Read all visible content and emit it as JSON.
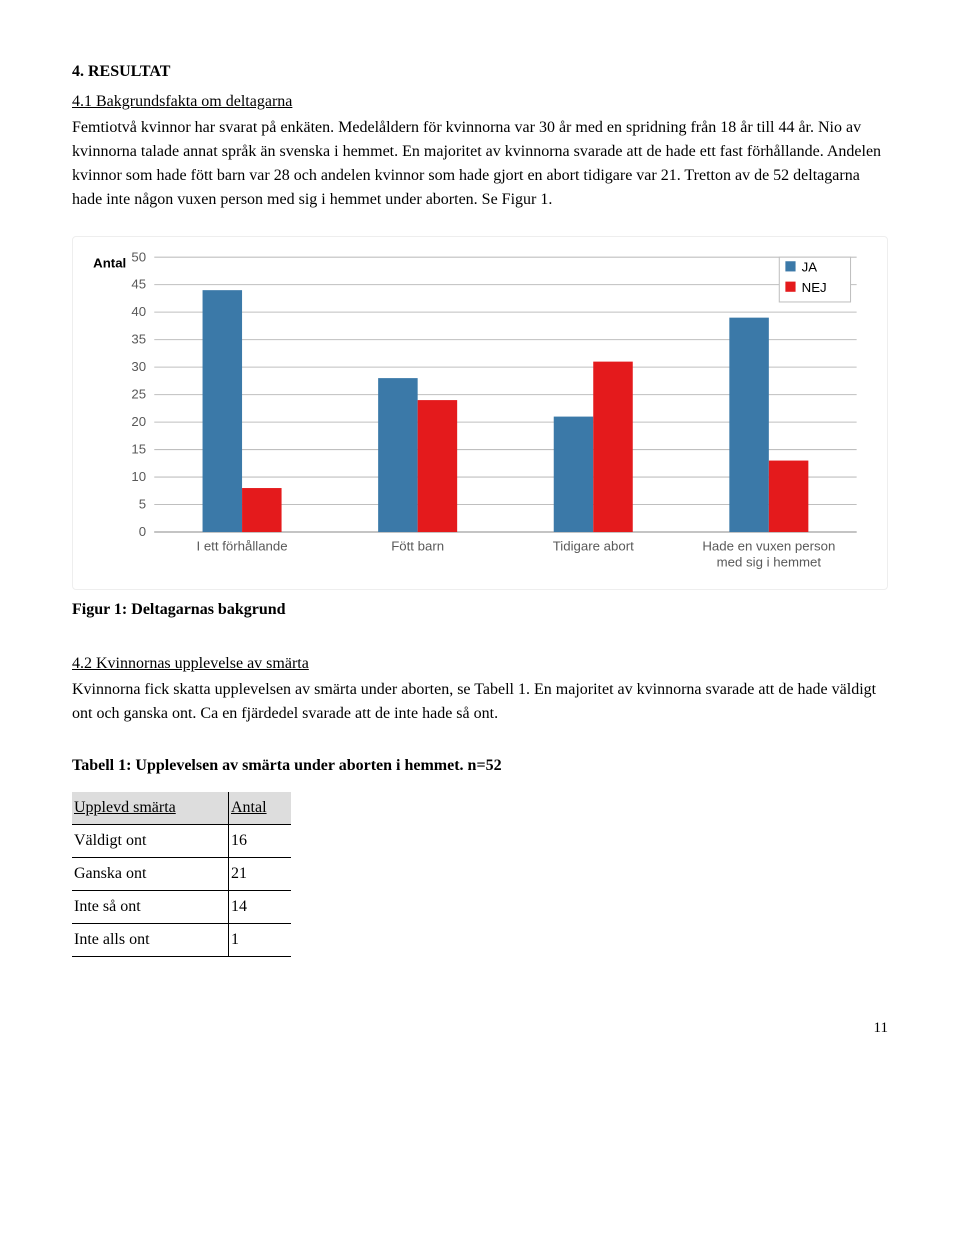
{
  "section41": {
    "heading_main": "4. RESULTAT",
    "heading_sub": "4.1 Bakgrundsfakta om deltagarna",
    "paragraph": "Femtiotvå kvinnor har svarat på enkäten. Medelåldern för kvinnorna var 30 år med en spridning från 18 år till 44 år. Nio av kvinnorna talade annat språk än svenska i hemmet. En majoritet av kvinnorna svarade att de hade ett fast förhållande. Andelen kvinnor som hade fött barn var 28 och andelen kvinnor som hade gjort en abort tidigare var 21. Tretton av de 52 deltagarna hade inte någon vuxen person med sig i hemmet under aborten. Se Figur 1."
  },
  "chart": {
    "type": "bar",
    "ylabel": "Antal",
    "categories": [
      "I ett förhållande",
      "Fött barn",
      "Tidigare abort",
      "Hade en vuxen person med sig i hemmet"
    ],
    "series": [
      {
        "name": "JA",
        "color": "#3b79a8",
        "values": [
          44,
          28,
          21,
          39
        ]
      },
      {
        "name": "NEJ",
        "color": "#e41a1c",
        "values": [
          8,
          24,
          31,
          13
        ]
      }
    ],
    "ylim": [
      0,
      50
    ],
    "ytick_step": 5,
    "background_color": "#ffffff",
    "grid_color": "#bfbfbf",
    "axis_font_family": "Arial, Helvetica, sans-serif",
    "axis_font_size": 13,
    "legend_font_size": 13,
    "bar_group_width": 0.45,
    "legend_box_border": "#bfbfbf"
  },
  "figure_caption": "Figur 1: Deltagarnas bakgrund",
  "section42": {
    "heading": "4.2 Kvinnornas upplevelse av smärta",
    "paragraph": "Kvinnorna fick skatta upplevelsen av smärta under aborten, se Tabell 1. En majoritet av kvinnorna svarade att de hade väldigt ont och ganska ont. Ca en fjärdedel svarade att de inte hade så ont."
  },
  "table1": {
    "title": "Tabell 1: Upplevelsen av smärta under aborten i hemmet. n=52",
    "columns": [
      "Upplevd smärta",
      "Antal"
    ],
    "rows": [
      [
        "Väldigt ont",
        "16"
      ],
      [
        "Ganska ont",
        "21"
      ],
      [
        "Inte så ont",
        "14"
      ],
      [
        "Inte alls ont",
        "1"
      ]
    ]
  },
  "page_number": "11"
}
